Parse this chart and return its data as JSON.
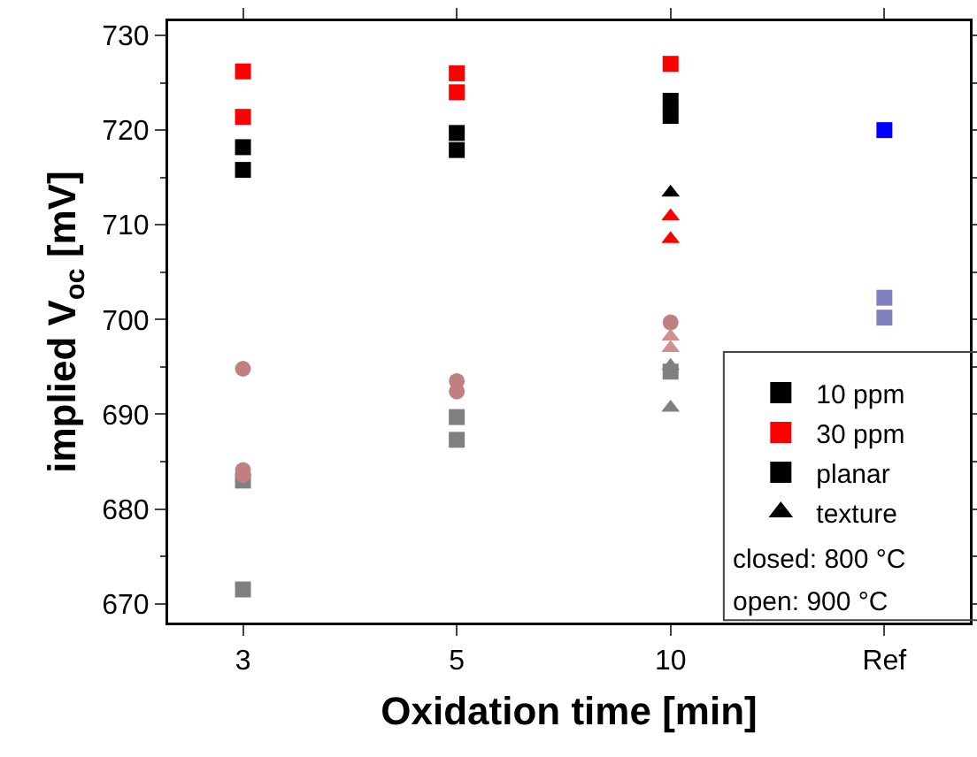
{
  "chart_data": {
    "type": "scatter",
    "xlabel": "Oxidation time [min]",
    "ylabel": "implied V$_{oc}$ [mV]",
    "categories": [
      "3",
      "5",
      "10",
      "Ref"
    ],
    "ylim": [
      668,
      731.5
    ],
    "yticks": [
      670,
      680,
      690,
      700,
      710,
      720,
      730
    ],
    "grid": false,
    "legend": "bottom right",
    "annotations": [
      "closed: 800 °C",
      "open: 900 °C"
    ],
    "series": [
      {
        "name": "10 ppm",
        "color": "#000000",
        "marker": "square",
        "x": [
          "3",
          "3",
          "5",
          "5",
          "10",
          "10"
        ],
        "values": [
          718.2,
          715.8,
          719.7,
          717.9,
          723.1,
          721.5
        ]
      },
      {
        "name": "30 ppm",
        "color": "#ff0000",
        "marker": "square",
        "x": [
          "3",
          "3",
          "5",
          "5",
          "10"
        ],
        "values": [
          726.2,
          721.4,
          726.0,
          724.0,
          727.0
        ]
      },
      {
        "name": "planar",
        "color": "#000000",
        "marker": "square",
        "x": [
          "3"
        ],
        "values": [
          null
        ]
      },
      {
        "name": "texture",
        "color": "#000000",
        "marker": "triangle",
        "x": [
          "10"
        ],
        "values": [
          713.4
        ]
      },
      {
        "color": "#ff0000",
        "marker": "triangle",
        "x": [
          "10",
          "10"
        ],
        "values": [
          710.9,
          708.5
        ]
      },
      {
        "color": "#808080",
        "marker": "square",
        "x": [
          "3",
          "3",
          "5",
          "5",
          "10"
        ],
        "values": [
          683.0,
          671.5,
          689.7,
          687.3,
          694.5
        ]
      },
      {
        "color": "#c08080",
        "marker": "circle",
        "x": [
          "3",
          "3",
          "3",
          "5",
          "5",
          "10"
        ],
        "values": [
          694.8,
          684.1,
          683.6,
          693.5,
          692.4,
          699.7
        ]
      },
      {
        "color": "#d09090",
        "marker": "triangle",
        "x": [
          "10",
          "10"
        ],
        "values": [
          698.2,
          697.0
        ]
      },
      {
        "color": "#808080",
        "marker": "triangle",
        "x": [
          "10",
          "10"
        ],
        "values": [
          695.1,
          690.7
        ]
      },
      {
        "color": "#0000ff",
        "marker": "square",
        "x": [
          "Ref"
        ],
        "values": [
          720.0
        ]
      },
      {
        "color": "#8080c0",
        "marker": "square",
        "x": [
          "Ref",
          "Ref"
        ],
        "values": [
          702.3,
          700.2
        ]
      }
    ]
  }
}
